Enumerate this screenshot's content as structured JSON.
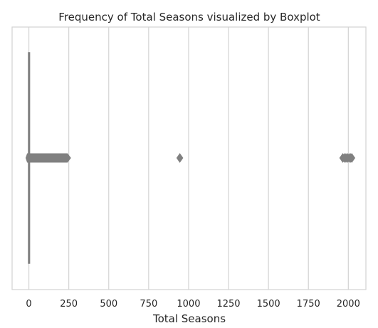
{
  "chart_data": {
    "type": "boxplot",
    "orientation": "horizontal",
    "title": "Frequency of Total Seasons visualized by Boxplot",
    "xlabel": "Total Seasons",
    "ylabel": "",
    "xlim": [
      -105,
      2110
    ],
    "xticks": [
      0,
      250,
      500,
      750,
      1000,
      1250,
      1500,
      1750,
      2000
    ],
    "grid": "vertical",
    "colors": {
      "box": "#808080",
      "grid": "#d3d3d3",
      "spine": "#d3d3d3",
      "background": "#ffffff"
    },
    "box": {
      "min": 1,
      "q1": 1,
      "median": 1,
      "q3": 2,
      "max": 3
    },
    "outliers": {
      "dense_range": [
        4,
        250
      ],
      "points": [
        945,
        1965,
        1975,
        1985,
        1995,
        2005,
        2015,
        2022
      ]
    }
  }
}
